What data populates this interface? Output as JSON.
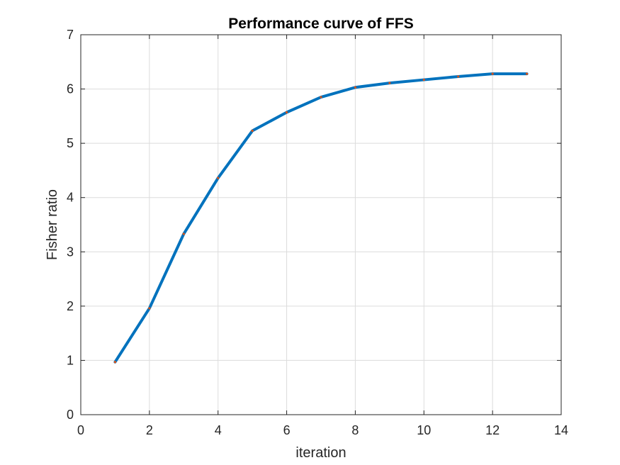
{
  "chart_data": {
    "type": "line",
    "title": "Performance curve of FFS",
    "xlabel": "iteration",
    "ylabel": "Fisher ratio",
    "xlim": [
      0,
      14
    ],
    "ylim": [
      0,
      7
    ],
    "xticks": [
      0,
      2,
      4,
      6,
      8,
      10,
      12,
      14
    ],
    "yticks": [
      0,
      1,
      2,
      3,
      4,
      5,
      6,
      7
    ],
    "grid": true,
    "series": [
      {
        "x": [
          1,
          2,
          3,
          4,
          5,
          6,
          7,
          8,
          9,
          10,
          11,
          12,
          13
        ],
        "y": [
          0.97,
          1.96,
          3.33,
          4.36,
          5.23,
          5.57,
          5.85,
          6.03,
          6.11,
          6.17,
          6.23,
          6.28,
          6.28
        ],
        "color": "#0072bd",
        "marker_color": "#d95319"
      }
    ]
  }
}
